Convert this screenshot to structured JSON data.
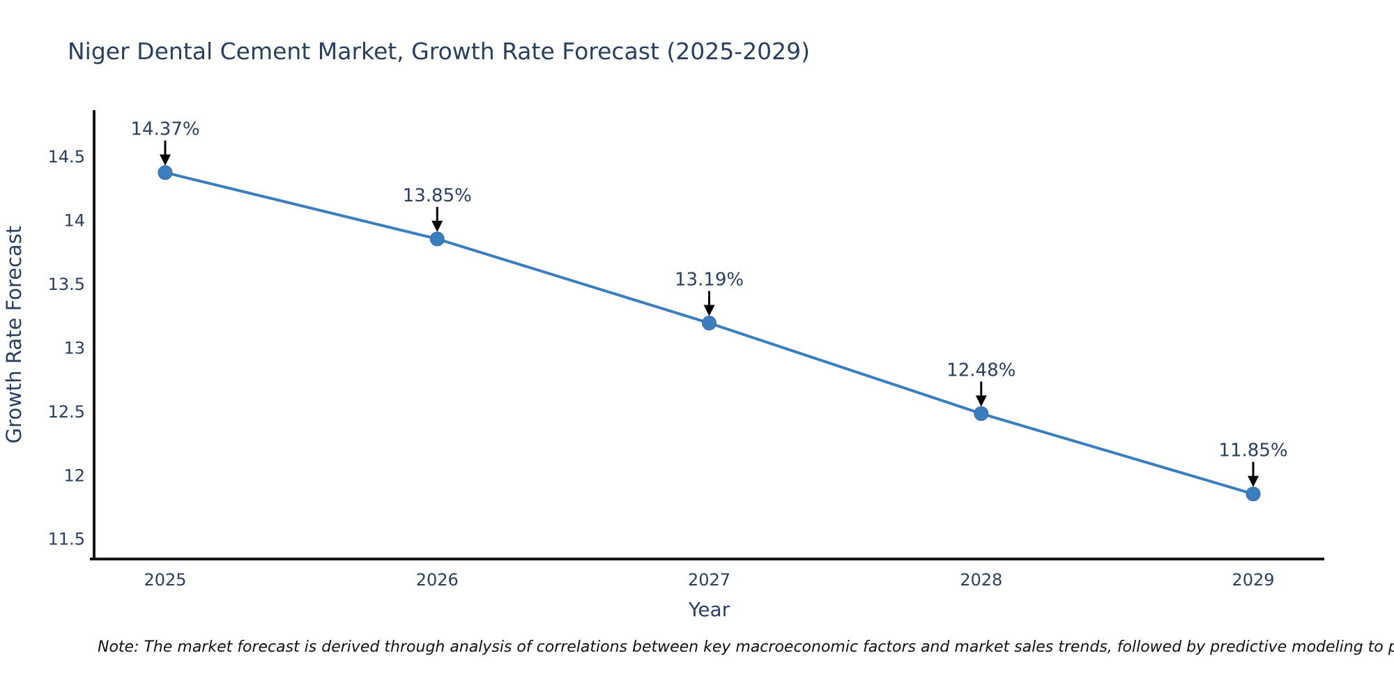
{
  "title": "Niger Dental Cement Market, Growth Rate Forecast (2025-2029)",
  "note": "Note: The market forecast is derived through analysis of correlations between key macroeconomic factors and market sales trends, followed by predictive modeling to project future sales.",
  "colors": {
    "line": "#3b7ebf",
    "marker": "#3b7ebf",
    "marker_edge": "#2f6da8",
    "axis": "#141414",
    "text": "#2a3f5f",
    "arrow": "#000000",
    "note_text": "#111111",
    "background": "#ffffff"
  },
  "chart_data": {
    "type": "line",
    "title": "Niger Dental Cement Market, Growth Rate Forecast (2025-2029)",
    "xlabel": "Year",
    "ylabel": "Growth Rate Forecast",
    "x": [
      2025,
      2026,
      2027,
      2028,
      2029
    ],
    "values": [
      14.37,
      13.85,
      13.19,
      12.48,
      11.85
    ],
    "point_labels": [
      "14.37%",
      "13.85%",
      "13.19%",
      "12.48%",
      "11.85%"
    ],
    "x_ticks": [
      "2025",
      "2026",
      "2027",
      "2028",
      "2029"
    ],
    "y_ticks": [
      14.5,
      14,
      13.5,
      13,
      12.5,
      12,
      11.5
    ],
    "ylim": [
      11.34,
      14.86
    ],
    "grid": false,
    "legend": null,
    "markers": true,
    "annotations_arrow": true
  }
}
